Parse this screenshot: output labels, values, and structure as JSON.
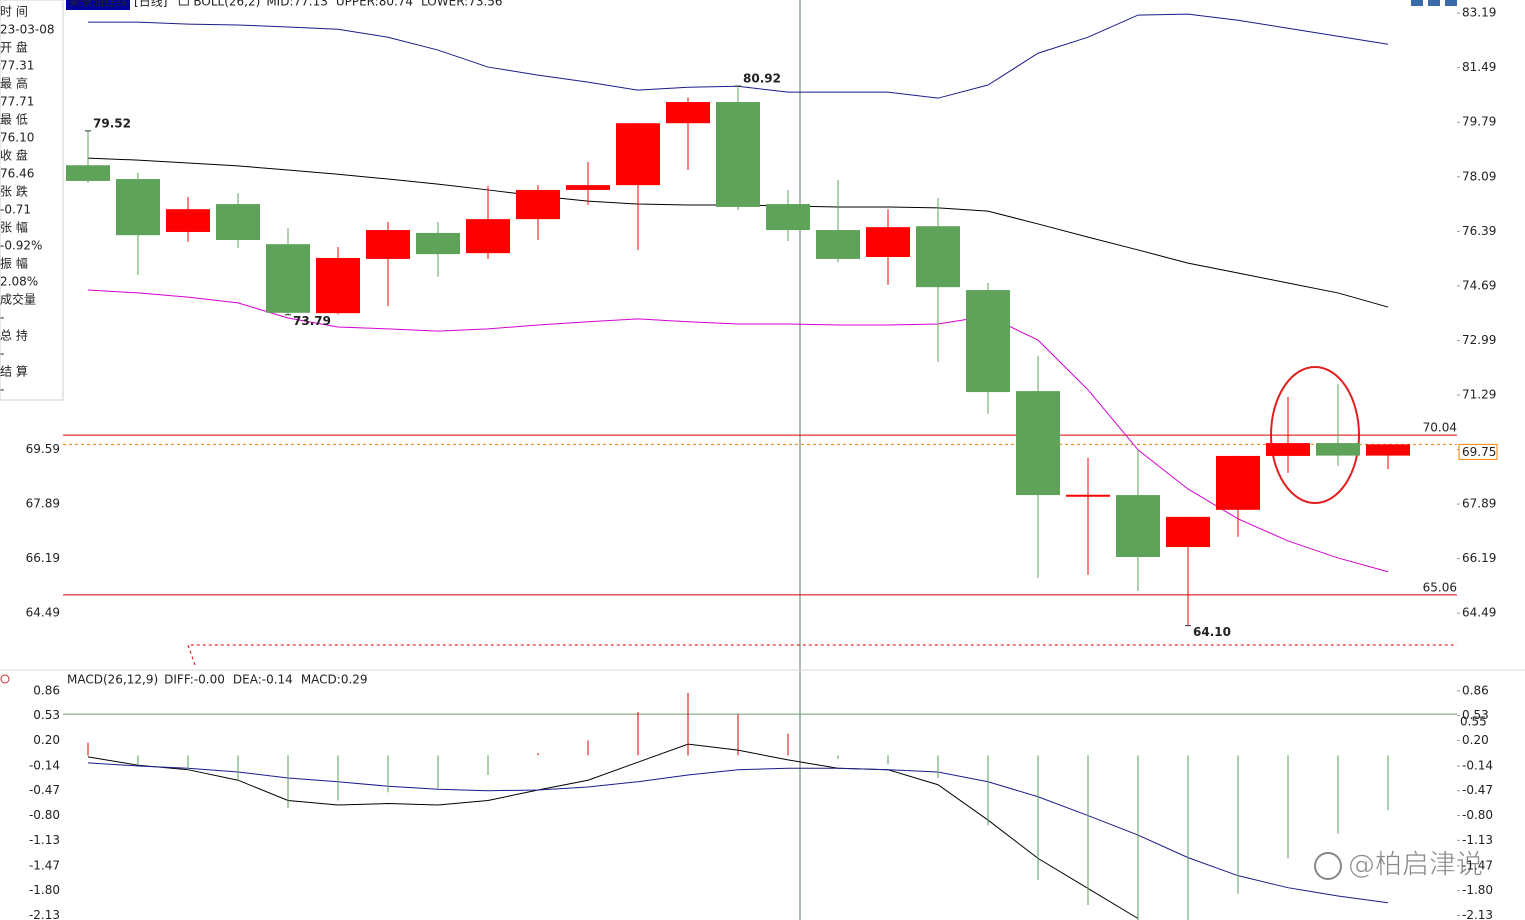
{
  "header": {
    "instrument": "美原油连续",
    "period": "[日线]"
  },
  "info_panel": {
    "rows": [
      {
        "label": "时 间",
        "value": "23-03-08",
        "color": "#222222"
      },
      {
        "label": "开 盘",
        "value": "77.31",
        "color": "#e00000"
      },
      {
        "label": "最 高",
        "value": "77.71",
        "color": "#e00000"
      },
      {
        "label": "最 低",
        "value": "76.10",
        "color": "#2e9a2e"
      },
      {
        "label": "收 盘",
        "value": "76.46",
        "color": "#2e9a2e"
      },
      {
        "label": "张 跌",
        "value": "-0.71",
        "color": "#2e9a2e"
      },
      {
        "label": "张 幅",
        "value": "-0.92%",
        "color": "#2e9a2e"
      },
      {
        "label": "振 幅",
        "value": "2.08%",
        "color": "#222222"
      },
      {
        "label": "成交量",
        "value": "-",
        "color": "#222222"
      },
      {
        "label": "总 持",
        "value": "-",
        "color": "#222222"
      },
      {
        "label": "结 算",
        "value": "-",
        "color": "#222222"
      }
    ]
  },
  "watermark": "@柏启津说",
  "chart_data": [
    {
      "type": "candlestick",
      "title": "BOLL(26,2)",
      "categories": [
        null,
        null,
        null,
        null,
        null,
        null,
        null,
        null,
        null,
        null,
        null,
        null,
        null,
        null,
        null,
        null,
        null,
        null,
        null,
        null,
        null,
        null,
        null,
        null,
        null,
        null,
        null
      ],
      "open": [
        78.45,
        78.02,
        76.37,
        77.24,
        75.99,
        73.84,
        75.53,
        76.34,
        75.71,
        76.77,
        77.68,
        77.83,
        79.76,
        80.42,
        77.24,
        76.43,
        75.59,
        76.55,
        74.56,
        71.41,
        68.15,
        68.17,
        66.55,
        67.71,
        69.39,
        69.79,
        69.4
      ],
      "high": [
        79.52,
        78.21,
        77.46,
        77.58,
        76.49,
        75.9,
        76.68,
        76.68,
        77.8,
        77.83,
        78.55,
        79.76,
        80.57,
        80.92,
        77.68,
        77.99,
        77.08,
        77.43,
        74.78,
        72.5,
        69.33,
        69.58,
        67.49,
        69.39,
        71.23,
        71.63,
        69.75
      ],
      "low": [
        77.9,
        75.03,
        76.06,
        75.87,
        73.79,
        73.8,
        74.06,
        74.97,
        75.53,
        76.12,
        77.21,
        75.81,
        78.3,
        77.05,
        76.09,
        75.43,
        74.72,
        72.32,
        70.7,
        65.59,
        65.68,
        65.18,
        64.1,
        66.87,
        68.86,
        69.08,
        68.98
      ],
      "close": [
        77.96,
        76.27,
        77.08,
        76.12,
        73.85,
        75.56,
        76.43,
        75.68,
        76.77,
        77.68,
        77.83,
        79.76,
        80.42,
        77.15,
        76.43,
        75.53,
        76.52,
        74.65,
        71.38,
        68.17,
        68.18,
        66.24,
        67.49,
        69.39,
        69.79,
        69.4,
        69.75
      ],
      "up_color": "#ff0000",
      "down_color": "#5fa35a",
      "series": [
        {
          "name": "MID:77.13",
          "color": "#000000",
          "values": [
            78.67,
            78.61,
            78.52,
            78.43,
            78.3,
            78.17,
            78.02,
            77.86,
            77.68,
            77.49,
            77.33,
            77.24,
            77.21,
            77.21,
            77.18,
            77.15,
            77.15,
            77.12,
            77.02,
            76.62,
            76.21,
            75.81,
            75.4,
            75.09,
            74.78,
            74.47,
            74.03
          ]
        },
        {
          "name": "UPPER:80.74",
          "color": "#1c1c8c",
          "values": [
            82.91,
            82.91,
            82.85,
            82.82,
            82.76,
            82.69,
            82.44,
            82.04,
            81.51,
            81.26,
            81.04,
            80.79,
            80.88,
            80.91,
            80.73,
            80.73,
            80.73,
            80.54,
            80.95,
            81.94,
            82.44,
            83.13,
            83.16,
            82.97,
            82.72,
            82.47,
            82.22
          ]
        },
        {
          "name": "LOWER:73.56",
          "color": "#d400d4",
          "values": [
            74.56,
            74.47,
            74.34,
            74.16,
            73.69,
            73.41,
            73.35,
            73.28,
            73.35,
            73.47,
            73.57,
            73.66,
            73.57,
            73.5,
            73.5,
            73.47,
            73.47,
            73.5,
            73.75,
            73.0,
            71.45,
            69.58,
            68.36,
            67.43,
            66.74,
            66.21,
            65.78
          ]
        }
      ],
      "extreme_labels": [
        {
          "value": 79.52,
          "color": "#e00000"
        },
        {
          "value": 73.79,
          "color": "#777777"
        },
        {
          "value": 80.92,
          "color": "#e00000"
        },
        {
          "value": {
            "value": 64.1,
            "label": "64.10"
          },
          "color": "#3a9a3a"
        }
      ],
      "hlines": [
        {
          "value": 70.04,
          "color": "#e00000",
          "style": "solid"
        },
        {
          "value": 65.06,
          "color": "#e00000",
          "style": "solid"
        },
        {
          "value": 69.75,
          "color": "#f08000",
          "style": "dashed"
        }
      ],
      "ylim": [
        62.78,
        83.6
      ],
      "yticks": [
        83.19,
        81.49,
        79.79,
        78.09,
        76.39,
        74.69,
        72.99,
        71.29,
        69.59,
        67.89,
        66.19,
        64.49
      ]
    },
    {
      "type": "macd",
      "title": "MACD(26,12,9)",
      "series": [
        {
          "name": "DIFF:-0.00",
          "type": "line",
          "color": "#000000",
          "values": [
            -0.02,
            -0.13,
            -0.19,
            -0.33,
            -0.6,
            -0.66,
            -0.64,
            -0.66,
            -0.6,
            -0.46,
            -0.33,
            -0.09,
            0.15,
            0.07,
            -0.06,
            -0.17,
            -0.19,
            -0.39,
            -0.86,
            -1.37,
            -1.77,
            -2.17,
            null,
            null,
            null,
            null,
            null
          ]
        },
        {
          "name": "DEA:-0.14",
          "type": "line",
          "color": "#1c1c8c",
          "values": [
            -0.1,
            -0.14,
            -0.17,
            -0.22,
            -0.3,
            -0.35,
            -0.41,
            -0.45,
            -0.47,
            -0.46,
            -0.42,
            -0.35,
            -0.26,
            -0.19,
            -0.17,
            -0.17,
            -0.19,
            -0.22,
            -0.35,
            -0.55,
            -0.8,
            -1.06,
            -1.36,
            -1.6,
            -1.76,
            -1.87,
            -1.96
          ]
        },
        {
          "name": "MACD:0.29",
          "type": "bar",
          "color": "#d400d4",
          "up_color": "#e00000",
          "down_color": "#5a9e5a",
          "values": [
            0.17,
            -0.13,
            -0.19,
            -0.33,
            -0.7,
            -0.6,
            -0.49,
            -0.44,
            -0.26,
            0.03,
            0.2,
            0.58,
            0.83,
            0.55,
            0.29,
            -0.05,
            -0.12,
            -0.3,
            -0.93,
            -1.66,
            -1.99,
            -2.19,
            -2.19,
            -1.84,
            -1.37,
            -1.04,
            -0.73
          ]
        }
      ],
      "hlines": [
        {
          "value": 0.55,
          "color": "#6f9a6f",
          "label_color": "#f08000"
        }
      ],
      "ylim": [
        -2.19,
        1.11
      ],
      "yticks": [
        0.86,
        0.53,
        {
          "value": 0.2,
          "label": "0.20"
        },
        -0.14,
        -0.47,
        {
          "value": -0.8,
          "label": "-0.80"
        },
        -1.13,
        -1.47,
        {
          "value": -1.8,
          "label": "-1.80"
        },
        -2.13
      ]
    }
  ]
}
